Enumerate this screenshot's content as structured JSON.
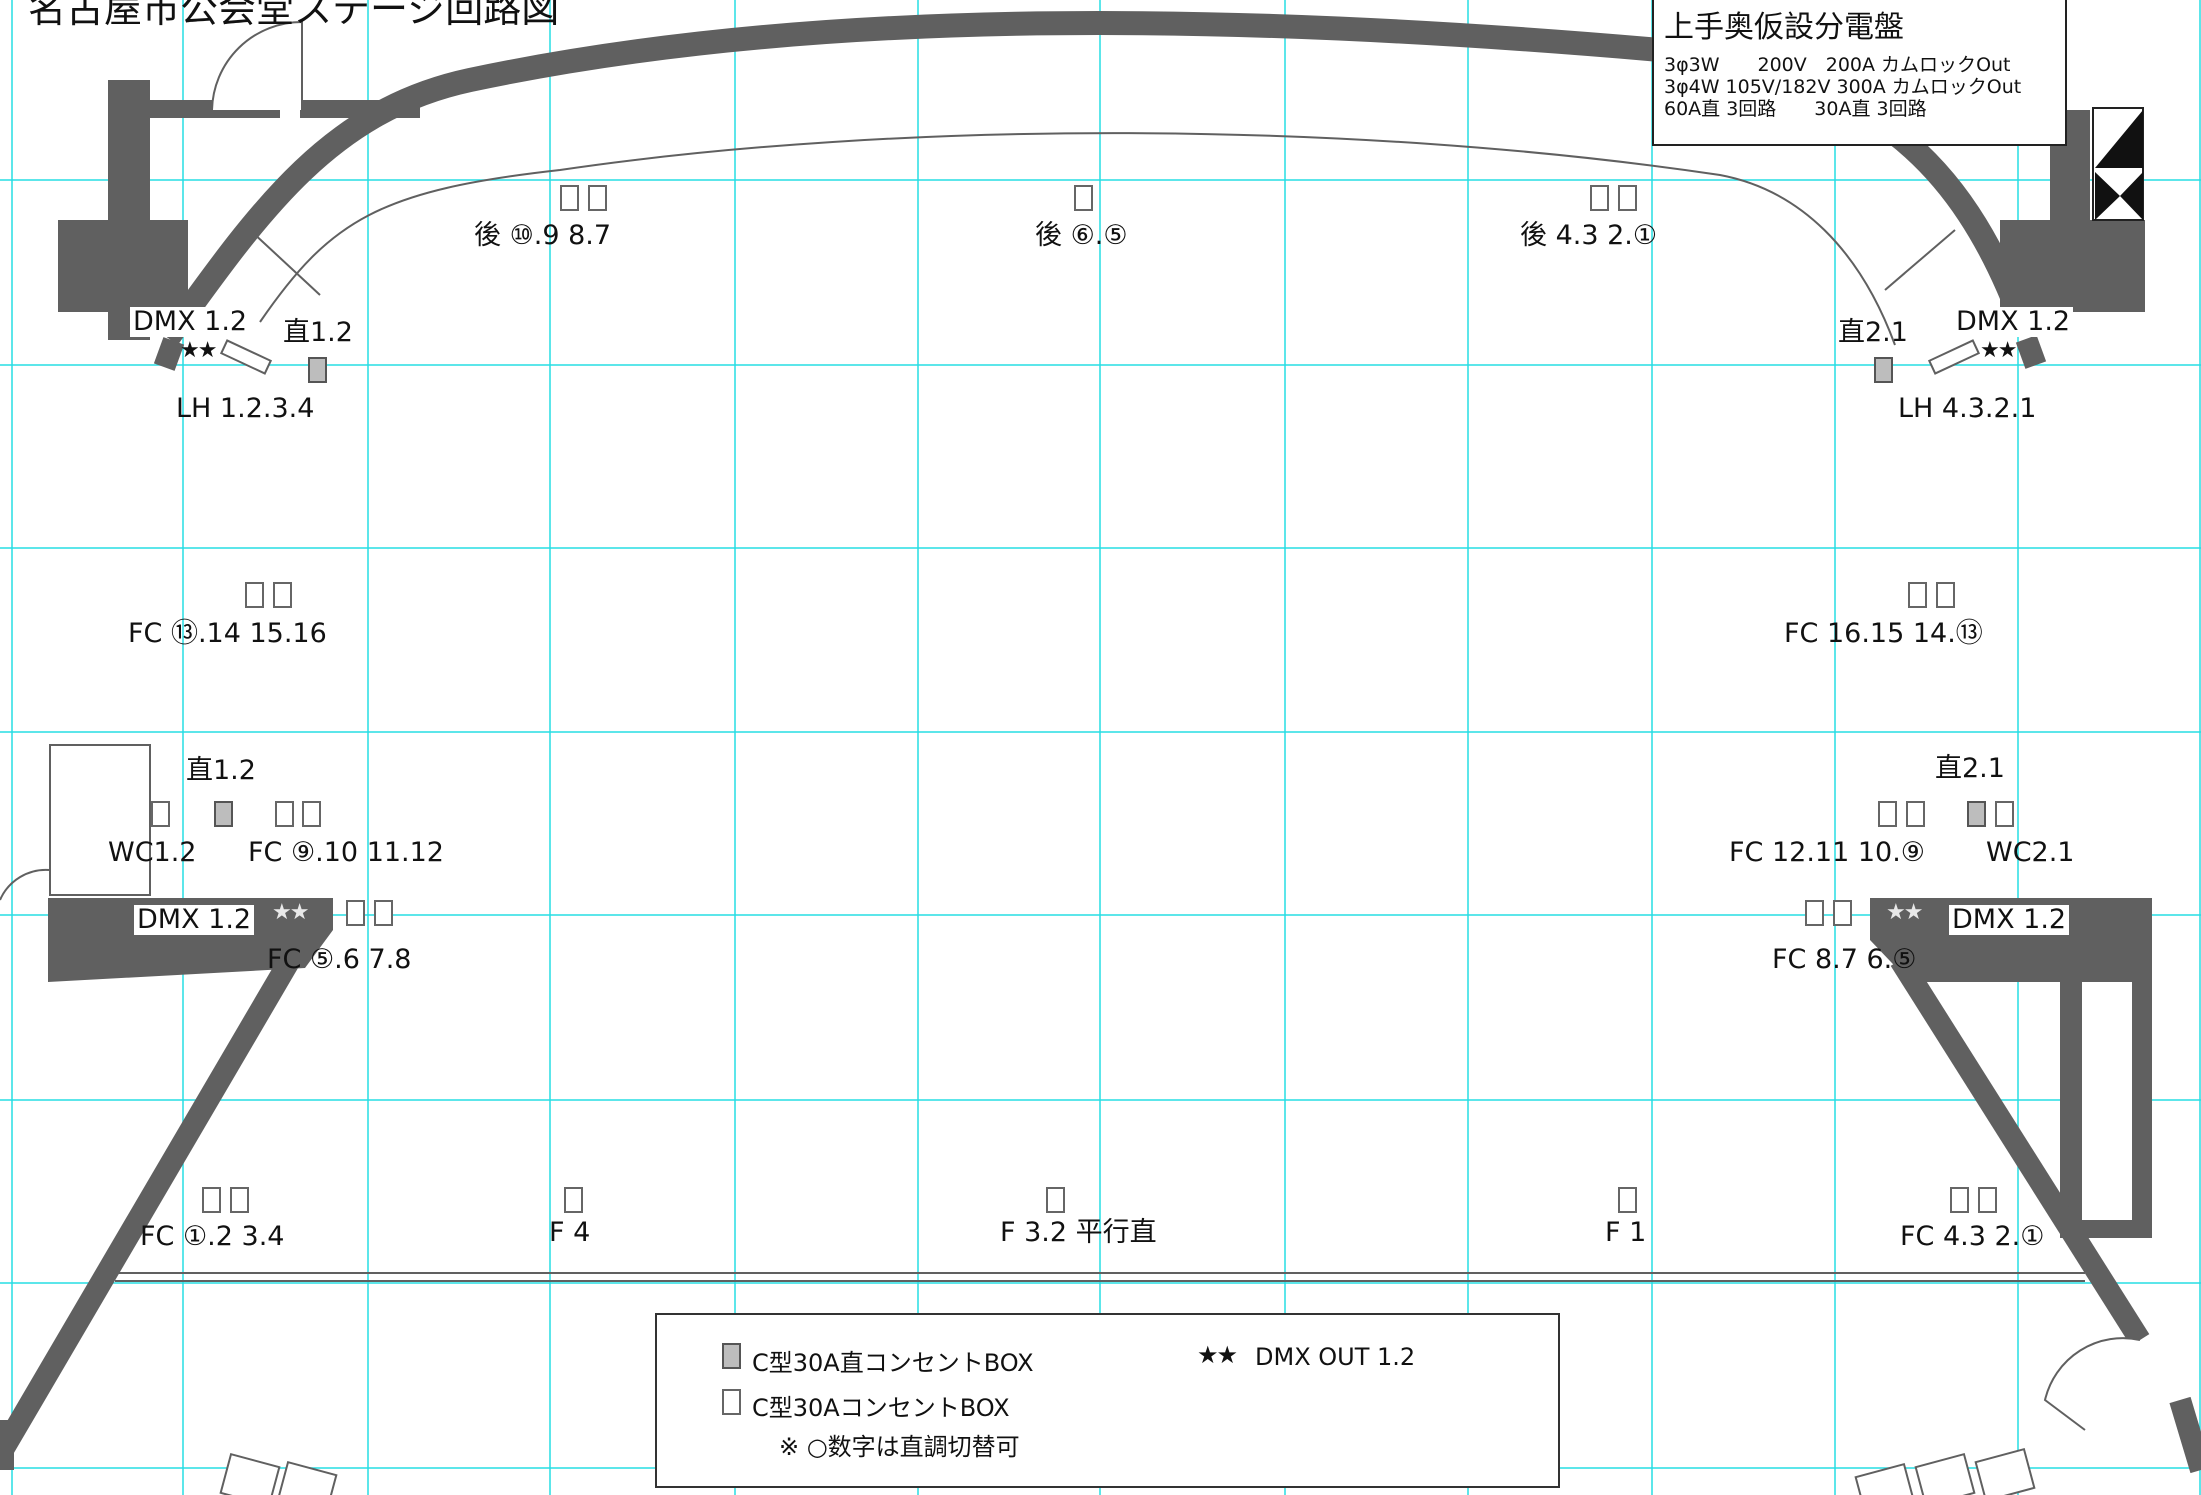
{
  "title": "名古屋市公会堂ステージ回路図",
  "panel": {
    "title": "上手奥仮設分電盤",
    "lines": [
      "3φ3W　　200V　200A カムロックOut",
      "3φ4W 105V/182V 300A カムロックOut",
      "60A直 3回路　　30A直 3回路"
    ]
  },
  "labels": {
    "rear_left": "後 ⑩.9 8.7",
    "rear_center": "後 ⑥.⑤",
    "rear_right": "後 4.3 2.①",
    "dmx_upper_left": "DMX 1.2",
    "dmx_upper_right": "DMX 1.2",
    "direct_upper_left": "直1.2",
    "direct_upper_right": "直2.1",
    "lh_left": "LH 1.2.3.4",
    "lh_right": "LH 4.3.2.1",
    "fc_mid_left": "FC ⑬.14 15.16",
    "fc_mid_right": "FC 16.15 14.⑬",
    "direct_lower_left": "直1.2",
    "direct_lower_right": "直2.1",
    "wc_left": "WC1.2",
    "fc_wing_left": "FC ⑨.10 11.12",
    "fc_wing_right": "FC 12.11 10.⑨",
    "wc_right": "WC2.1",
    "dmx_lower_left": "DMX 1.2",
    "dmx_lower_right": "DMX 1.2",
    "fc_lower_left": "FC ⑤.6 7.8",
    "fc_lower_right": "FC 8.7 6.⑤",
    "fc_front_left": "FC ①.2 3.4",
    "f4": "F 4",
    "f_center": "F 3.2 平行直",
    "f1": "F 1",
    "fc_front_right": "FC 4.3 2.①",
    "stars": "★★"
  },
  "legend": {
    "direct_box": "C型30A直コンセントBOX",
    "box": "C型30AコンセントBOX",
    "note": "※ ○数字は直調切替可",
    "dmx_out": "DMX OUT 1.2",
    "stars": "★★"
  },
  "colors": {
    "wall": "#606060",
    "grid": "#00d8e0",
    "direct_box_fill": "#bdbdbd"
  }
}
